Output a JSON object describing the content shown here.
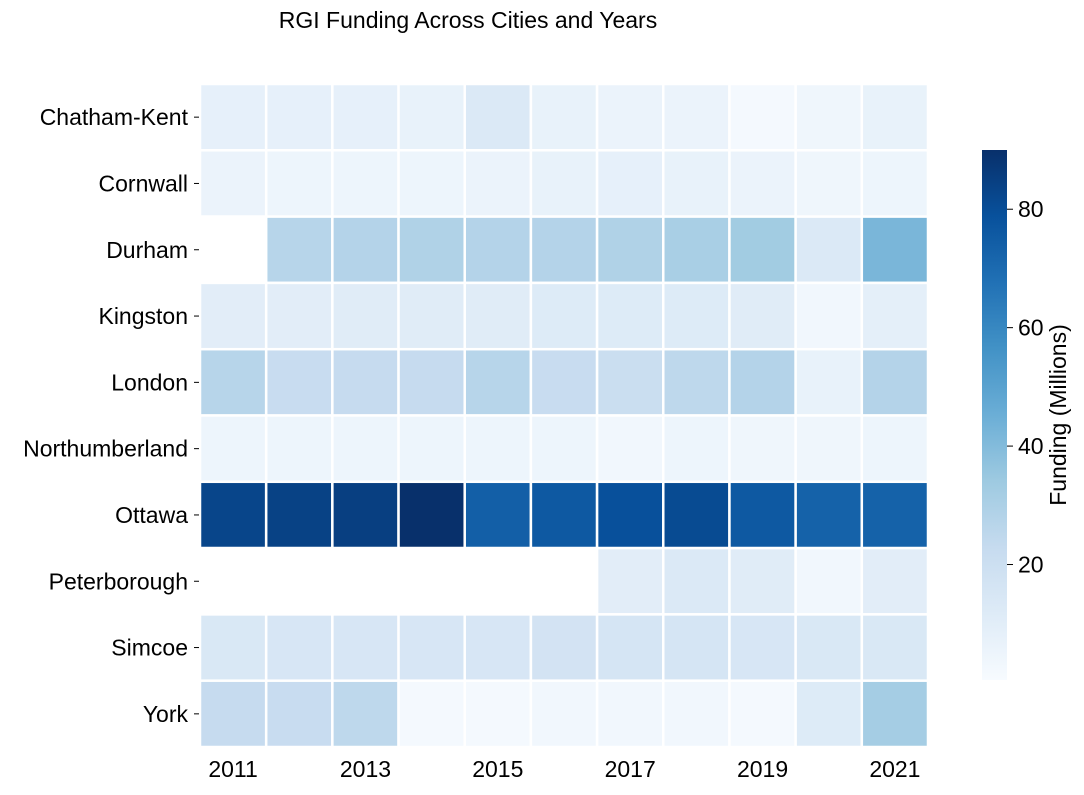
{
  "chart_data": {
    "type": "heatmap",
    "title": "RGI Funding Across Cities and Years",
    "xlabel": "",
    "ylabel": "",
    "rows": [
      "Chatham-Kent",
      "Cornwall",
      "Durham",
      "Kingston",
      "London",
      "Northumberland",
      "Ottawa",
      "Peterborough",
      "Simcoe",
      "York"
    ],
    "columns": [
      2011,
      2012,
      2013,
      2014,
      2015,
      2016,
      2017,
      2018,
      2019,
      2020,
      2021
    ],
    "x_tick_labels": [
      "2011",
      "2013",
      "2015",
      "2017",
      "2019",
      "2021"
    ],
    "values": [
      [
        8,
        8,
        8,
        7,
        13,
        7,
        6,
        6,
        2,
        4,
        7
      ],
      [
        6,
        5,
        5,
        5,
        6,
        7,
        8,
        7,
        6,
        4,
        5
      ],
      [
        null,
        27,
        28,
        29,
        28,
        28,
        29,
        31,
        33,
        13,
        42
      ],
      [
        10,
        10,
        11,
        11,
        11,
        12,
        12,
        12,
        11,
        3,
        9
      ],
      [
        27,
        22,
        23,
        23,
        27,
        22,
        21,
        25,
        28,
        7,
        28
      ],
      [
        5,
        5,
        5,
        5,
        5,
        5,
        3,
        5,
        4,
        4,
        5
      ],
      [
        83,
        84,
        85,
        90,
        74,
        76,
        79,
        81,
        76,
        73,
        73
      ],
      [
        null,
        null,
        null,
        null,
        null,
        null,
        10,
        13,
        11,
        3,
        10
      ],
      [
        14,
        15,
        15,
        15,
        15,
        17,
        16,
        16,
        15,
        14,
        14
      ],
      [
        23,
        22,
        25,
        2,
        2,
        3,
        3,
        3,
        2,
        12,
        32
      ]
    ],
    "colorbar": {
      "label": "Funding (Millions)",
      "min": 0.5,
      "max": 90,
      "ticks": [
        20,
        40,
        60,
        80
      ],
      "colormap": "Blues"
    },
    "colormap_stops": [
      "#f7fbff",
      "#deebf7",
      "#c6dbef",
      "#9ecae1",
      "#6baed6",
      "#4292c6",
      "#2171b5",
      "#08519c",
      "#08306b"
    ],
    "missing_color": "#ffffff",
    "cell_border_color": "#ffffff",
    "grid": false
  }
}
